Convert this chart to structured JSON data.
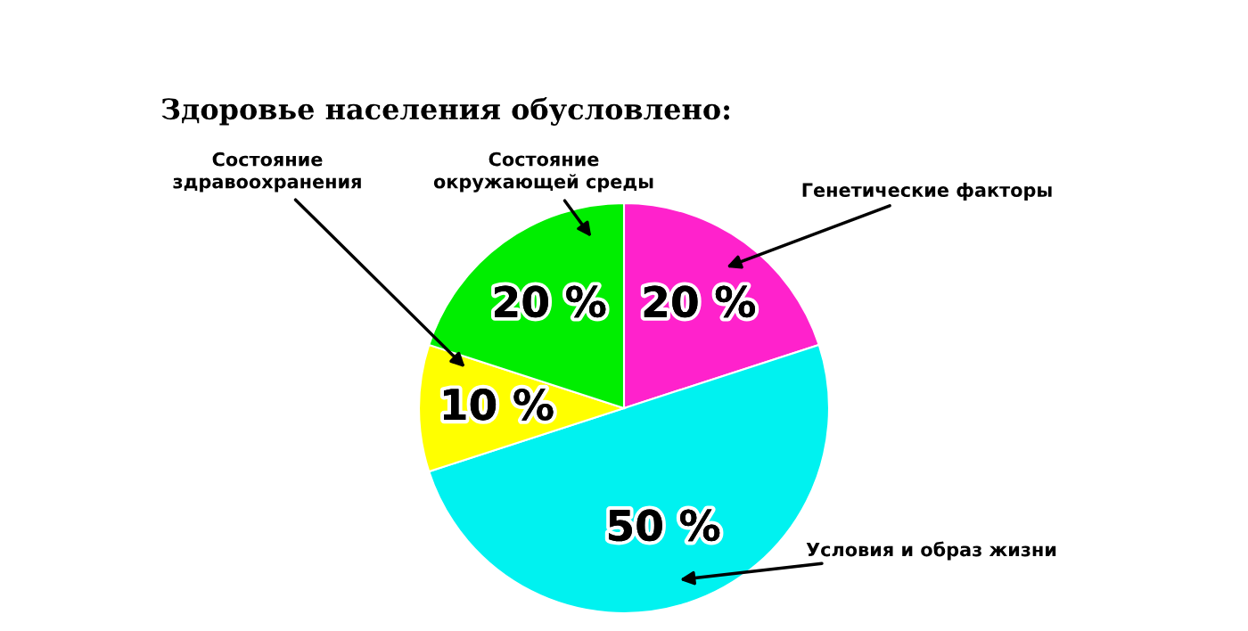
{
  "chart_data": {
    "type": "pie",
    "title": "Здоровье населения обусловлено:",
    "categories": [
      "Генетические факторы",
      "Условия и образ жизни",
      "Состояние\nздравоохранения",
      "Состояние\nокружающей среды"
    ],
    "values": [
      20,
      50,
      10,
      20
    ],
    "colors": [
      "#ff22cc",
      "#00f2f0",
      "#ffff00",
      "#00ee00"
    ],
    "value_labels": [
      "20 %",
      "50 %",
      "10 %",
      "20 %"
    ]
  }
}
